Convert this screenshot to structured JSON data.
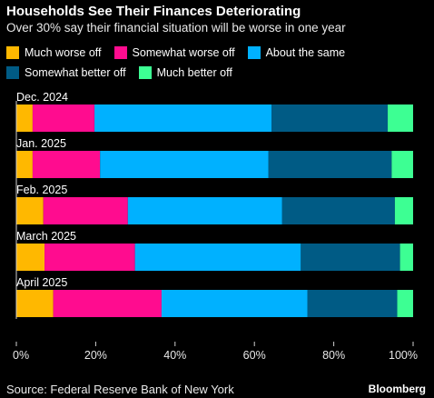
{
  "chart_data": {
    "type": "bar",
    "orientation": "horizontal",
    "stacked": true,
    "title": "Households See Their Finances Deteriorating",
    "subtitle": "Over 30% say their financial situation will be worse in one year",
    "categories": [
      "Dec. 2024",
      "Jan. 2025",
      "Feb. 2025",
      "March 2025",
      "April 2025"
    ],
    "series": [
      {
        "name": "Much worse off",
        "color": "#ffb800",
        "values": [
          4.1,
          4.1,
          6.8,
          7.1,
          9.3
        ]
      },
      {
        "name": "Somewhat worse off",
        "color": "#ff0c8f",
        "values": [
          15.6,
          17.0,
          21.3,
          22.8,
          27.3
        ]
      },
      {
        "name": "About the same",
        "color": "#00b1ff",
        "values": [
          44.6,
          42.4,
          38.9,
          41.8,
          36.8
        ]
      },
      {
        "name": "Somewhat better off",
        "color": "#005b85",
        "values": [
          29.3,
          31.1,
          28.4,
          25.0,
          22.6
        ]
      },
      {
        "name": "Much better off",
        "color": "#3dff93",
        "values": [
          6.4,
          5.4,
          4.6,
          3.3,
          4.0
        ]
      }
    ],
    "xlim": [
      0,
      100
    ],
    "xticks": [
      "0%",
      "20%",
      "40%",
      "60%",
      "80%",
      "100%"
    ],
    "legend_position": "top"
  },
  "source": "Source: Federal Reserve Bank of New York",
  "brand": "Bloomberg"
}
